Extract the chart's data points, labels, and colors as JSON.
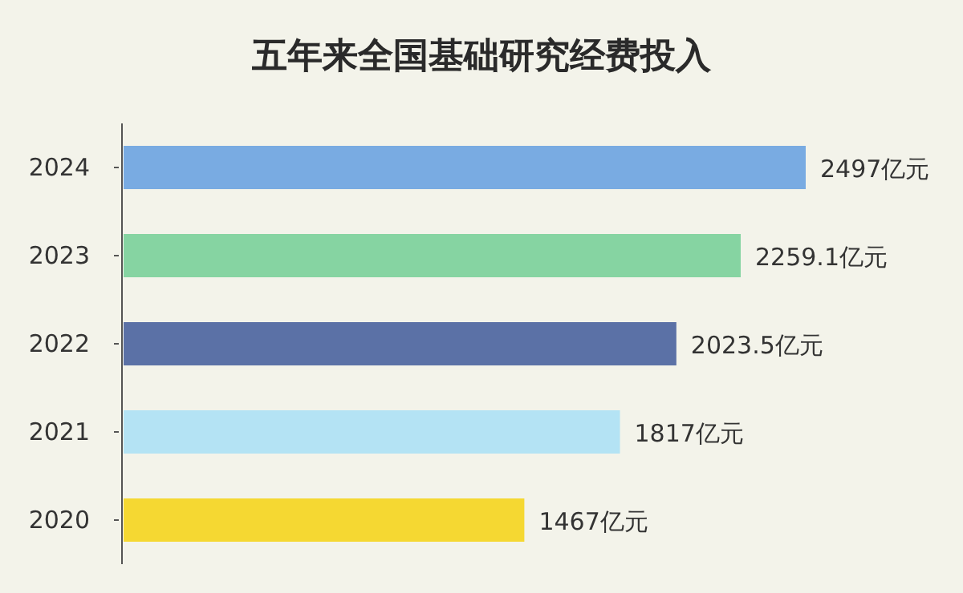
{
  "chart_data": {
    "type": "bar",
    "orientation": "horizontal",
    "title": "五年来全国基础研究经费投入",
    "categories": [
      "2024",
      "2023",
      "2022",
      "2021",
      "2020"
    ],
    "values": [
      2497,
      2259.1,
      2023.5,
      1817,
      1467
    ],
    "colors": [
      "#79abe2",
      "#86d4a2",
      "#5b71a6",
      "#b4e3f4",
      "#f5d832"
    ],
    "value_labels": [
      "2497亿元",
      "2259.1亿元",
      "2023.5亿元",
      "1817亿元",
      "1467亿元"
    ]
  }
}
